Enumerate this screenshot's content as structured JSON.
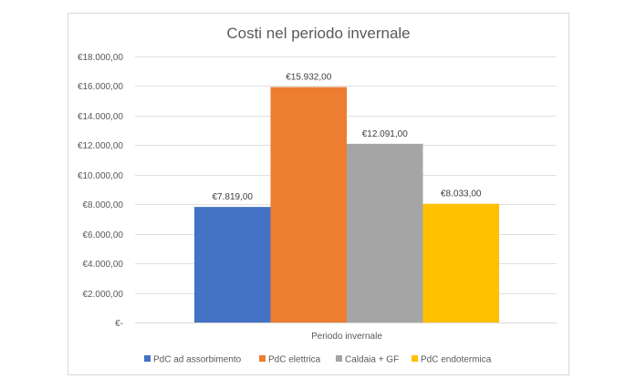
{
  "chart_data": {
    "type": "bar",
    "title": "Costi nel periodo invernale",
    "categories": [
      "Periodo invernale"
    ],
    "series": [
      {
        "name": "PdC ad assorbimento",
        "values": [
          7819
        ],
        "label": "€7.819,00",
        "color": "#4472C4"
      },
      {
        "name": "PdC elettrica",
        "values": [
          15932
        ],
        "label": "€15.932,00",
        "color": "#ED7D31"
      },
      {
        "name": "Caldaia + GF",
        "values": [
          12091
        ],
        "label": "€12.091,00",
        "color": "#A5A5A5"
      },
      {
        "name": "PdC endotermica",
        "values": [
          8033
        ],
        "label": "€8.033,00",
        "color": "#FFC000"
      }
    ],
    "ylim": [
      0,
      18000
    ],
    "yticks": [
      0,
      2000,
      4000,
      6000,
      8000,
      10000,
      12000,
      14000,
      16000,
      18000
    ],
    "ytick_labels": [
      "€-",
      "€2.000,00",
      "€4.000,00",
      "€6.000,00",
      "€8.000,00",
      "€10.000,00",
      "€12.000,00",
      "€14.000,00",
      "€16.000,00",
      "€18.000,00"
    ],
    "grid": true,
    "legend": "bottom"
  }
}
